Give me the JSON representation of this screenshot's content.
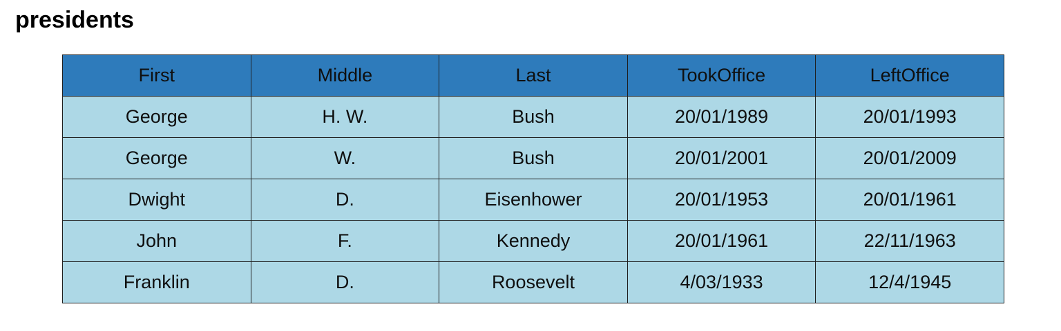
{
  "title": "presidents",
  "table": {
    "columns": [
      "First",
      "Middle",
      "Last",
      "TookOffice",
      "LeftOffice"
    ],
    "rows": [
      [
        "George",
        "H. W.",
        "Bush",
        "20/01/1989",
        "20/01/1993"
      ],
      [
        "George",
        "W.",
        "Bush",
        "20/01/2001",
        "20/01/2009"
      ],
      [
        "Dwight",
        "D.",
        "Eisenhower",
        "20/01/1953",
        "20/01/1961"
      ],
      [
        "John",
        "F.",
        "Kennedy",
        "20/01/1961",
        "22/11/1963"
      ],
      [
        "Franklin",
        "D.",
        "Roosevelt",
        "4/03/1933",
        "12/4/1945"
      ]
    ]
  },
  "colors": {
    "header_bg": "#2e7bbb",
    "cell_bg": "#add8e6",
    "border": "#1f1f1f"
  }
}
